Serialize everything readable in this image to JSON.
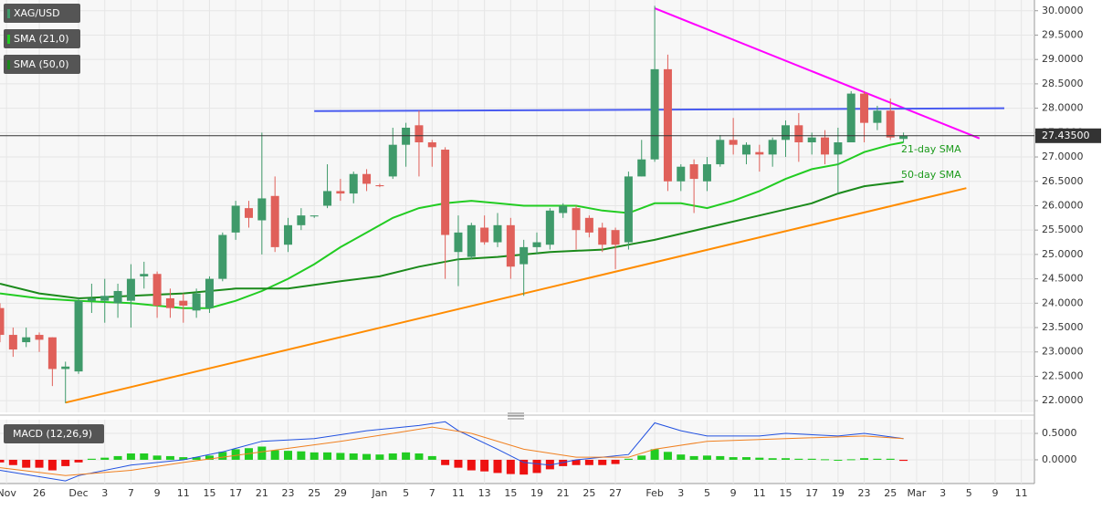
{
  "chart_data": [
    {
      "type": "candlestick",
      "name": "XAG/USD",
      "up_color": "#3f9a6a",
      "down_color": "#e0605a",
      "open": [
        23.9,
        23.35,
        23.2,
        23.35,
        23.3,
        22.65,
        22.6,
        24.05,
        24.05,
        24.0,
        24.05,
        24.55,
        24.6,
        24.1,
        24.05,
        23.85,
        23.9,
        24.5,
        25.45,
        25.95,
        25.7,
        26.2,
        25.2,
        25.6,
        25.78,
        26.0,
        26.3,
        26.25,
        26.65,
        26.42,
        26.6,
        27.25,
        27.65,
        27.3,
        27.15,
        25.05,
        24.95,
        25.55,
        25.25,
        25.6,
        24.8,
        25.15,
        25.2,
        25.85,
        25.95,
        25.75,
        25.55,
        25.5,
        25.25,
        26.6,
        26.95,
        28.8,
        26.5,
        26.85,
        26.5,
        26.85,
        27.35,
        27.05,
        27.1,
        27.05,
        27.35,
        27.65,
        27.3,
        27.4,
        27.05,
        27.3,
        28.3,
        27.7,
        27.95,
        27.37
      ],
      "high": [
        24.0,
        23.5,
        23.5,
        23.4,
        23.3,
        22.8,
        24.1,
        24.4,
        24.5,
        24.4,
        24.8,
        24.85,
        24.65,
        24.3,
        24.2,
        24.3,
        24.55,
        25.45,
        26.1,
        26.1,
        27.5,
        26.6,
        25.75,
        25.95,
        25.8,
        26.85,
        26.55,
        26.7,
        26.75,
        26.45,
        27.6,
        27.7,
        27.95,
        27.35,
        27.2,
        25.8,
        25.65,
        25.8,
        25.85,
        25.75,
        25.3,
        25.45,
        25.95,
        26.05,
        26.0,
        25.8,
        25.65,
        25.55,
        26.7,
        27.35,
        30.1,
        29.1,
        26.85,
        26.95,
        27.0,
        27.45,
        27.8,
        27.3,
        27.25,
        27.4,
        27.75,
        27.9,
        27.5,
        27.55,
        27.6,
        28.35,
        28.35,
        28.05,
        28.2,
        27.5
      ],
      "low": [
        23.2,
        22.9,
        23.1,
        23.0,
        22.3,
        21.95,
        22.55,
        23.8,
        23.6,
        23.7,
        23.5,
        24.3,
        23.7,
        23.7,
        23.6,
        23.7,
        23.8,
        24.45,
        25.3,
        25.55,
        25.0,
        25.05,
        25.05,
        25.5,
        25.75,
        25.95,
        26.1,
        26.05,
        26.3,
        26.38,
        26.55,
        26.8,
        26.6,
        26.8,
        24.5,
        24.35,
        24.9,
        25.2,
        25.15,
        24.5,
        24.15,
        25.0,
        25.1,
        25.75,
        25.1,
        25.35,
        25.05,
        24.7,
        25.1,
        26.6,
        26.9,
        26.3,
        26.3,
        25.85,
        26.3,
        26.8,
        27.05,
        26.85,
        26.7,
        26.8,
        27.0,
        26.9,
        27.05,
        26.85,
        26.25,
        27.3,
        27.3,
        27.55,
        27.35,
        27.3
      ],
      "close": [
        23.35,
        23.05,
        23.3,
        23.25,
        22.65,
        22.7,
        24.05,
        24.1,
        24.15,
        24.25,
        24.5,
        24.6,
        23.95,
        23.9,
        23.95,
        24.2,
        24.5,
        25.4,
        26.0,
        25.75,
        26.15,
        25.15,
        25.6,
        25.8,
        25.8,
        26.3,
        26.25,
        26.65,
        26.45,
        26.4,
        27.25,
        27.6,
        27.3,
        27.2,
        25.4,
        25.45,
        25.6,
        25.25,
        25.6,
        24.75,
        25.15,
        25.25,
        25.9,
        26.0,
        25.5,
        25.45,
        25.2,
        25.2,
        26.6,
        26.95,
        28.8,
        26.5,
        26.8,
        26.55,
        26.85,
        27.35,
        27.25,
        27.25,
        27.05,
        27.35,
        27.65,
        27.3,
        27.4,
        27.05,
        27.3,
        28.3,
        27.7,
        27.95,
        27.4,
        27.435
      ],
      "series": [
        {
          "name": "SMA (21,0)",
          "color": "#22cc22",
          "x": [
            0,
            3,
            6,
            10,
            14,
            16,
            18,
            20,
            22,
            24,
            26,
            28,
            30,
            32,
            34,
            36,
            38,
            40,
            42,
            44,
            46,
            48,
            50,
            52,
            54,
            56,
            58,
            60,
            62,
            64,
            66,
            68,
            69
          ],
          "values": [
            24.2,
            24.1,
            24.05,
            24.0,
            23.9,
            23.9,
            24.05,
            24.25,
            24.5,
            24.8,
            25.15,
            25.45,
            25.75,
            25.95,
            26.05,
            26.1,
            26.05,
            26.0,
            26.0,
            26.0,
            25.9,
            25.85,
            26.05,
            26.05,
            25.95,
            26.1,
            26.3,
            26.55,
            26.75,
            26.85,
            27.1,
            27.25,
            27.3
          ]
        },
        {
          "name": "SMA (50,0)",
          "color": "#1b8a1b",
          "x": [
            0,
            3,
            6,
            10,
            14,
            18,
            22,
            26,
            29,
            32,
            35,
            38,
            42,
            46,
            48,
            50,
            54,
            58,
            62,
            64,
            66,
            69
          ],
          "values": [
            24.4,
            24.2,
            24.1,
            24.15,
            24.2,
            24.3,
            24.3,
            24.45,
            24.55,
            24.75,
            24.9,
            24.95,
            25.05,
            25.1,
            25.2,
            25.3,
            25.55,
            25.8,
            26.05,
            26.25,
            26.4,
            26.5
          ]
        }
      ],
      "trendlines": [
        {
          "color": "#ff8c00",
          "x": [
            5,
            73.8
          ],
          "values": [
            21.96,
            26.36
          ]
        },
        {
          "color": "#ff00ff",
          "x": [
            50,
            74.8
          ],
          "values": [
            30.05,
            27.38
          ]
        },
        {
          "color": "#4a5cf0",
          "x": [
            24,
            76.7
          ],
          "values": [
            27.94,
            28.0
          ]
        }
      ],
      "annotations": [
        "21-day SMA",
        "50-day SMA"
      ],
      "last": {
        "value": 27.435,
        "label": "27.43500"
      },
      "xlim": [
        0,
        79
      ],
      "ylim": [
        21.76,
        30.22
      ],
      "xticks": [
        {
          "value": 0.5,
          "label": "Nov"
        },
        {
          "value": 3,
          "label": "26"
        },
        {
          "value": 6,
          "label": "Dec"
        },
        {
          "value": 8,
          "label": "3"
        },
        {
          "value": 10,
          "label": "7"
        },
        {
          "value": 12,
          "label": "9"
        },
        {
          "value": 14,
          "label": "11"
        },
        {
          "value": 16,
          "label": "15"
        },
        {
          "value": 18,
          "label": "17"
        },
        {
          "value": 20,
          "label": "21"
        },
        {
          "value": 22,
          "label": "23"
        },
        {
          "value": 24,
          "label": "25"
        },
        {
          "value": 26,
          "label": "29"
        },
        {
          "value": 29,
          "label": "Jan"
        },
        {
          "value": 31,
          "label": "5"
        },
        {
          "value": 33,
          "label": "7"
        },
        {
          "value": 35,
          "label": "11"
        },
        {
          "value": 37,
          "label": "13"
        },
        {
          "value": 39,
          "label": "15"
        },
        {
          "value": 41,
          "label": "19"
        },
        {
          "value": 43,
          "label": "21"
        },
        {
          "value": 45,
          "label": "25"
        },
        {
          "value": 47,
          "label": "27"
        },
        {
          "value": 50,
          "label": "Feb"
        },
        {
          "value": 52,
          "label": "3"
        },
        {
          "value": 54,
          "label": "5"
        },
        {
          "value": 56,
          "label": "9"
        },
        {
          "value": 58,
          "label": "11"
        },
        {
          "value": 60,
          "label": "15"
        },
        {
          "value": 62,
          "label": "17"
        },
        {
          "value": 64,
          "label": "19"
        },
        {
          "value": 66,
          "label": "23"
        },
        {
          "value": 68,
          "label": "25"
        },
        {
          "value": 70,
          "label": "Mar"
        },
        {
          "value": 72,
          "label": "3"
        },
        {
          "value": 74,
          "label": "5"
        },
        {
          "value": 76,
          "label": "9"
        },
        {
          "value": 78,
          "label": "11"
        }
      ],
      "yticks": [
        {
          "value": 22,
          "label": "22.0000"
        },
        {
          "value": 22.5,
          "label": "22.5000"
        },
        {
          "value": 23,
          "label": "23.0000"
        },
        {
          "value": 23.5,
          "label": "23.5000"
        },
        {
          "value": 24,
          "label": "24.0000"
        },
        {
          "value": 24.5,
          "label": "24.5000"
        },
        {
          "value": 25,
          "label": "25.0000"
        },
        {
          "value": 25.5,
          "label": "25.5000"
        },
        {
          "value": 26,
          "label": "26.0000"
        },
        {
          "value": 26.5,
          "label": "26.5000"
        },
        {
          "value": 27,
          "label": "27.0000"
        },
        {
          "value": 27.5,
          "label": "27.5000"
        },
        {
          "value": 28,
          "label": "28.0000"
        },
        {
          "value": 28.5,
          "label": "28.5000"
        },
        {
          "value": 29,
          "label": "29.0000"
        },
        {
          "value": 29.5,
          "label": "29.5000"
        },
        {
          "value": 30,
          "label": "30.0000"
        }
      ],
      "grid": true
    },
    {
      "type": "macd",
      "name": "MACD (12,26,9)",
      "up_color": "#22cc22",
      "down_color": "#ee1111",
      "histogram": [
        -0.05,
        -0.1,
        -0.15,
        -0.15,
        -0.2,
        -0.12,
        -0.05,
        0.02,
        0.04,
        0.07,
        0.12,
        0.12,
        0.08,
        0.07,
        0.05,
        0.05,
        0.08,
        0.15,
        0.2,
        0.22,
        0.25,
        0.18,
        0.17,
        0.16,
        0.14,
        0.14,
        0.13,
        0.12,
        0.11,
        0.1,
        0.12,
        0.14,
        0.12,
        0.07,
        -0.1,
        -0.15,
        -0.2,
        -0.22,
        -0.25,
        -0.27,
        -0.28,
        -0.25,
        -0.18,
        -0.12,
        -0.1,
        -0.1,
        -0.1,
        -0.08,
        0.02,
        0.08,
        0.2,
        0.15,
        0.1,
        0.07,
        0.08,
        0.07,
        0.05,
        0.05,
        0.04,
        0.03,
        0.03,
        0.02,
        0.02,
        0.01,
        0.0,
        0.01,
        0.03,
        0.02,
        0.02,
        -0.02
      ],
      "series": [
        {
          "color": "#2050e0",
          "x": [
            0,
            5,
            6,
            10,
            14,
            17,
            20,
            24,
            28,
            32,
            34,
            35,
            38,
            40,
            42,
            44,
            46,
            48,
            50,
            52,
            54,
            58,
            60,
            64,
            66,
            69
          ],
          "values": [
            -0.2,
            -0.4,
            -0.3,
            -0.1,
            0.0,
            0.15,
            0.35,
            0.4,
            0.55,
            0.65,
            0.72,
            0.55,
            0.2,
            -0.05,
            -0.1,
            0.0,
            0.05,
            0.1,
            0.7,
            0.55,
            0.45,
            0.45,
            0.5,
            0.45,
            0.5,
            0.4
          ]
        },
        {
          "color": "#f08020",
          "x": [
            0,
            5,
            10,
            14,
            20,
            26,
            30,
            33,
            36,
            40,
            44,
            48,
            50,
            54,
            60,
            66,
            69
          ],
          "values": [
            -0.15,
            -0.3,
            -0.2,
            -0.05,
            0.15,
            0.35,
            0.5,
            0.62,
            0.5,
            0.2,
            0.05,
            0.05,
            0.2,
            0.35,
            0.4,
            0.45,
            0.4
          ]
        }
      ],
      "ylim": [
        -0.45,
        0.76
      ],
      "yticks": [
        {
          "value": 0.5,
          "label": "0.5000"
        },
        {
          "value": 0,
          "label": "0.0000"
        }
      ],
      "grid": true
    }
  ]
}
